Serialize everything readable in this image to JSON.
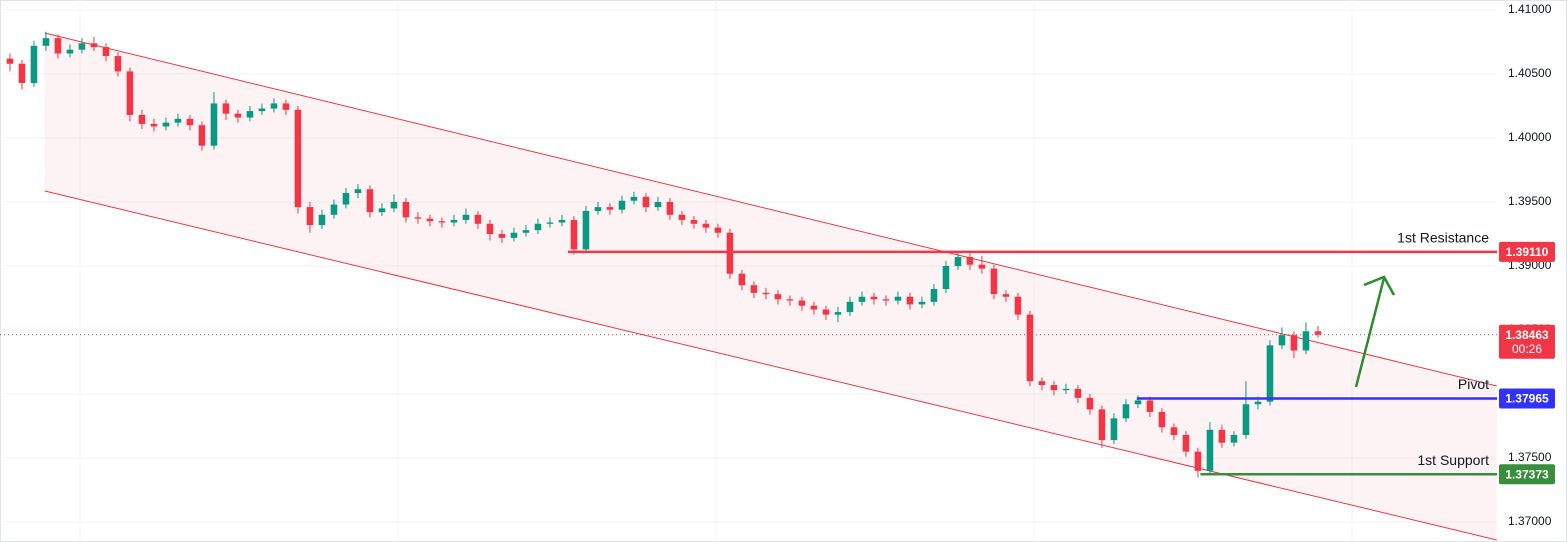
{
  "chart_data": {
    "type": "candlestick",
    "up_color": "#089981",
    "down_color": "#f23645",
    "grid": true,
    "xlim": [
      -0.83,
      123.92
    ],
    "ylim": [
      1.36844,
      1.41078
    ],
    "yticks": [
      {
        "value": 1.37,
        "label": "1.37000"
      },
      {
        "value": 1.375,
        "label": "1.37500"
      },
      {
        "value": 1.38,
        "label": "1.38000"
      },
      {
        "value": 1.385,
        "label": "1.38500"
      },
      {
        "value": 1.39,
        "label": "1.39000"
      },
      {
        "value": 1.395,
        "label": "1.39500"
      },
      {
        "value": 1.4,
        "label": "1.40000"
      },
      {
        "value": 1.405,
        "label": "1.40500"
      },
      {
        "value": 1.41,
        "label": "1.41000"
      }
    ],
    "channel": {
      "color": "#f23645",
      "upper": [
        [
          2.9,
          1.4082
        ],
        [
          123.9,
          1.38063
        ]
      ],
      "lower": [
        [
          2.9,
          1.39586
        ],
        [
          123.9,
          1.3686
        ]
      ]
    },
    "levels": [
      {
        "name": "1st Resistance",
        "value": {
          "value": 1.3911,
          "label": "1.39110"
        },
        "color": "#f23645",
        "start": 46.5
      },
      {
        "name": "Pivot",
        "value": 1.37965,
        "color": "#3232ff",
        "start": 93.9
      },
      {
        "name": "1st Support",
        "value": 1.37373,
        "color": "#388e3c",
        "start": 99.2
      }
    ],
    "current_price": {
      "value": 1.38463,
      "countdown": "00:26",
      "color": "#f23645"
    },
    "ohlc": [
      [
        1.4062,
        1.4066,
        1.4052,
        1.4058
      ],
      [
        1.4058,
        1.4061,
        1.4038,
        1.4043
      ],
      [
        1.4043,
        1.4076,
        1.404,
        1.4072
      ],
      [
        1.4072,
        1.4083,
        1.4068,
        1.4078
      ],
      [
        1.4078,
        1.4081,
        1.4062,
        1.4066
      ],
      [
        1.4066,
        1.4073,
        1.4063,
        1.4069
      ],
      [
        1.4069,
        1.4078,
        1.4066,
        1.4074
      ],
      [
        1.4074,
        1.4079,
        1.4068,
        1.4071
      ],
      [
        1.4071,
        1.4074,
        1.406,
        1.4064
      ],
      [
        1.4064,
        1.4067,
        1.4048,
        1.4052
      ],
      [
        1.4052,
        1.4055,
        1.4013,
        1.4018
      ],
      [
        1.4018,
        1.4022,
        1.4007,
        1.4011
      ],
      [
        1.4011,
        1.4015,
        1.4005,
        1.4009
      ],
      [
        1.4009,
        1.4016,
        1.4006,
        1.4012
      ],
      [
        1.4012,
        1.4019,
        1.4009,
        1.4015
      ],
      [
        1.4015,
        1.4018,
        1.4006,
        1.401
      ],
      [
        1.401,
        1.4013,
        1.399,
        1.3994
      ],
      [
        1.3994,
        1.4036,
        1.3991,
        1.4027
      ],
      [
        1.4027,
        1.403,
        1.4014,
        1.4019
      ],
      [
        1.4019,
        1.4022,
        1.4012,
        1.4016
      ],
      [
        1.4016,
        1.4025,
        1.4013,
        1.4021
      ],
      [
        1.4021,
        1.4027,
        1.4018,
        1.4023
      ],
      [
        1.4023,
        1.4031,
        1.402,
        1.4027
      ],
      [
        1.4027,
        1.403,
        1.4018,
        1.4022
      ],
      [
        1.4022,
        1.4025,
        1.3941,
        1.3946
      ],
      [
        1.3946,
        1.395,
        1.3926,
        1.3932
      ],
      [
        1.3932,
        1.3944,
        1.3929,
        1.394
      ],
      [
        1.394,
        1.3952,
        1.3937,
        1.3948
      ],
      [
        1.3948,
        1.3961,
        1.3945,
        1.3957
      ],
      [
        1.3957,
        1.3964,
        1.3953,
        1.396
      ],
      [
        1.396,
        1.3963,
        1.3938,
        1.3942
      ],
      [
        1.3942,
        1.3949,
        1.3939,
        1.3945
      ],
      [
        1.3945,
        1.3956,
        1.3942,
        1.395
      ],
      [
        1.395,
        1.3953,
        1.3934,
        1.3938
      ],
      [
        1.3938,
        1.3942,
        1.3933,
        1.3937
      ],
      [
        1.3937,
        1.394,
        1.3931,
        1.3935
      ],
      [
        1.3935,
        1.3938,
        1.393,
        1.3934
      ],
      [
        1.3934,
        1.394,
        1.3931,
        1.3936
      ],
      [
        1.3936,
        1.3945,
        1.3933,
        1.394
      ],
      [
        1.394,
        1.3943,
        1.3929,
        1.3933
      ],
      [
        1.3933,
        1.3936,
        1.392,
        1.3925
      ],
      [
        1.3925,
        1.3928,
        1.3918,
        1.3922
      ],
      [
        1.3922,
        1.393,
        1.3919,
        1.3926
      ],
      [
        1.3926,
        1.3932,
        1.3923,
        1.3928
      ],
      [
        1.3928,
        1.3937,
        1.3925,
        1.3933
      ],
      [
        1.3933,
        1.3938,
        1.393,
        1.3934
      ],
      [
        1.3934,
        1.394,
        1.3931,
        1.3936
      ],
      [
        1.3936,
        1.3939,
        1.3909,
        1.3913
      ],
      [
        1.3913,
        1.3947,
        1.391,
        1.3943
      ],
      [
        1.3943,
        1.395,
        1.394,
        1.3946
      ],
      [
        1.3946,
        1.3949,
        1.394,
        1.3944
      ],
      [
        1.3944,
        1.3955,
        1.3941,
        1.3951
      ],
      [
        1.3951,
        1.3958,
        1.3948,
        1.3954
      ],
      [
        1.3954,
        1.3957,
        1.3942,
        1.3946
      ],
      [
        1.3946,
        1.3954,
        1.3943,
        1.395
      ],
      [
        1.395,
        1.3953,
        1.3936,
        1.394
      ],
      [
        1.394,
        1.3943,
        1.3932,
        1.3936
      ],
      [
        1.3936,
        1.3939,
        1.3929,
        1.3933
      ],
      [
        1.3933,
        1.3936,
        1.3926,
        1.393
      ],
      [
        1.393,
        1.3933,
        1.3922,
        1.3926
      ],
      [
        1.3926,
        1.3929,
        1.389,
        1.3894
      ],
      [
        1.3894,
        1.3897,
        1.3881,
        1.3885
      ],
      [
        1.3885,
        1.3888,
        1.3875,
        1.3879
      ],
      [
        1.3879,
        1.3883,
        1.3874,
        1.3878
      ],
      [
        1.3878,
        1.3881,
        1.387,
        1.3874
      ],
      [
        1.3874,
        1.3877,
        1.3869,
        1.3873
      ],
      [
        1.3873,
        1.3876,
        1.3865,
        1.3869
      ],
      [
        1.3869,
        1.3872,
        1.3862,
        1.3866
      ],
      [
        1.3866,
        1.3869,
        1.3858,
        1.3862
      ],
      [
        1.3862,
        1.3868,
        1.3856,
        1.3864
      ],
      [
        1.3864,
        1.3876,
        1.3861,
        1.3872
      ],
      [
        1.3872,
        1.388,
        1.3869,
        1.3876
      ],
      [
        1.3876,
        1.3879,
        1.387,
        1.3874
      ],
      [
        1.3874,
        1.3877,
        1.3869,
        1.3873
      ],
      [
        1.3873,
        1.388,
        1.387,
        1.3876
      ],
      [
        1.3876,
        1.3879,
        1.3866,
        1.387
      ],
      [
        1.387,
        1.3876,
        1.3867,
        1.3872
      ],
      [
        1.3872,
        1.3886,
        1.3869,
        1.3882
      ],
      [
        1.3882,
        1.3904,
        1.3879,
        1.39
      ],
      [
        1.39,
        1.3911,
        1.3897,
        1.3907
      ],
      [
        1.3907,
        1.391,
        1.3897,
        1.3901
      ],
      [
        1.3901,
        1.3908,
        1.3894,
        1.3898
      ],
      [
        1.3898,
        1.3901,
        1.3874,
        1.3878
      ],
      [
        1.3878,
        1.3881,
        1.3872,
        1.3876
      ],
      [
        1.3876,
        1.3879,
        1.3858,
        1.3862
      ],
      [
        1.3862,
        1.3865,
        1.3806,
        1.381
      ],
      [
        1.381,
        1.3813,
        1.3803,
        1.3807
      ],
      [
        1.3807,
        1.381,
        1.3799,
        1.3803
      ],
      [
        1.3803,
        1.3808,
        1.38,
        1.3804
      ],
      [
        1.3804,
        1.3807,
        1.3793,
        1.3797
      ],
      [
        1.3797,
        1.38,
        1.3784,
        1.3788
      ],
      [
        1.3788,
        1.3791,
        1.3758,
        1.3764
      ],
      [
        1.3764,
        1.3785,
        1.3761,
        1.3781
      ],
      [
        1.3781,
        1.3796,
        1.3778,
        1.3792
      ],
      [
        1.3792,
        1.3799,
        1.3789,
        1.3795
      ],
      [
        1.3795,
        1.3798,
        1.3782,
        1.3786
      ],
      [
        1.3786,
        1.3789,
        1.377,
        1.3774
      ],
      [
        1.3774,
        1.3777,
        1.3764,
        1.3768
      ],
      [
        1.3768,
        1.3771,
        1.3751,
        1.3755
      ],
      [
        1.3755,
        1.3758,
        1.3735,
        1.374
      ],
      [
        1.374,
        1.3778,
        1.3737,
        1.3772
      ],
      [
        1.3772,
        1.3776,
        1.3758,
        1.3762
      ],
      [
        1.3762,
        1.3771,
        1.3759,
        1.3768
      ],
      [
        1.3768,
        1.381,
        1.3765,
        1.3792
      ],
      [
        1.3792,
        1.3798,
        1.3788,
        1.3794
      ],
      [
        1.3794,
        1.3842,
        1.3791,
        1.3838
      ],
      [
        1.3838,
        1.3852,
        1.3835,
        1.3846
      ],
      [
        1.3846,
        1.3849,
        1.3828,
        1.3834
      ],
      [
        1.3834,
        1.3856,
        1.3831,
        1.3849
      ],
      [
        1.3849,
        1.3853,
        1.3844,
        1.38463
      ]
    ]
  }
}
